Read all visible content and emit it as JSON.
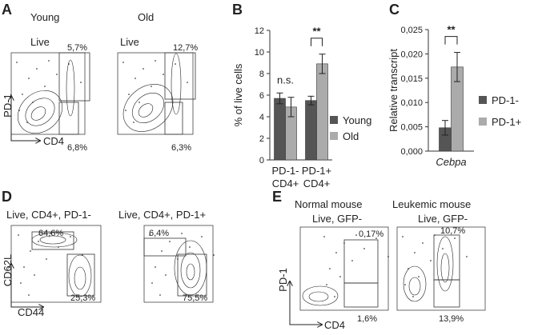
{
  "panels": {
    "A": {
      "label": "A",
      "y_axis": "PD-1",
      "x_axis": "CD4",
      "young": {
        "title": "Young",
        "gate": "Live",
        "upper": "5,7%",
        "lower": "6,8%"
      },
      "old": {
        "title": "Old",
        "gate": "Live",
        "upper": "12,7%",
        "lower": "6,3%"
      }
    },
    "D": {
      "label": "D",
      "y_axis": "CD62L",
      "x_axis": "CD44",
      "left": {
        "title": "Live, CD4+, PD-1-",
        "upper": "64,6%",
        "lower": "25,3%"
      },
      "right": {
        "title": "Live, CD4+, PD-1+",
        "upper": "6,4%",
        "lower": "75,5%"
      }
    },
    "E": {
      "label": "E",
      "y_axis": "PD-1",
      "x_axis": "CD4",
      "normal": {
        "title": "Normal mouse",
        "gate": "Live, GFP-",
        "upper": "0,17%",
        "lower": "1,6%"
      },
      "leukemic": {
        "title": "Leukemic mouse",
        "gate": "Live, GFP-",
        "upper": "10,7%",
        "lower": "13,9%"
      }
    }
  },
  "chart_data": [
    {
      "type": "bar",
      "panel_label": "B",
      "y_label": "% of live cells",
      "categories": [
        "PD-1- CD4+",
        "PD-1+ CD4+"
      ],
      "series": [
        {
          "name": "Young",
          "color": "#555555",
          "values": [
            5.7,
            5.5
          ],
          "errors": [
            0.5,
            0.4
          ]
        },
        {
          "name": "Old",
          "color": "#ababab",
          "values": [
            4.9,
            8.9
          ],
          "errors": [
            0.9,
            0.9
          ]
        }
      ],
      "ylim": [
        0,
        12
      ],
      "yticks": [
        0,
        2,
        4,
        6,
        8,
        10,
        12
      ],
      "annotations": [
        "n.s.",
        "**"
      ]
    },
    {
      "type": "bar",
      "panel_label": "C",
      "y_label": "Relative transcript",
      "categories": [
        "Cebpa"
      ],
      "series": [
        {
          "name": "PD-1-",
          "color": "#555555",
          "values": [
            0.0048
          ],
          "errors": [
            0.0015
          ]
        },
        {
          "name": "PD-1+",
          "color": "#ababab",
          "values": [
            0.0173
          ],
          "errors": [
            0.003
          ]
        }
      ],
      "ylim": [
        0,
        0.025
      ],
      "yticks": [
        {
          "value": 0,
          "label": "0,000"
        },
        {
          "value": 0.005,
          "label": "0,005"
        },
        {
          "value": 0.01,
          "label": "0,010"
        },
        {
          "value": 0.015,
          "label": "0,015"
        },
        {
          "value": 0.02,
          "label": "0,020"
        },
        {
          "value": 0.025,
          "label": "0,025"
        }
      ],
      "annotations": [
        "**"
      ]
    }
  ]
}
